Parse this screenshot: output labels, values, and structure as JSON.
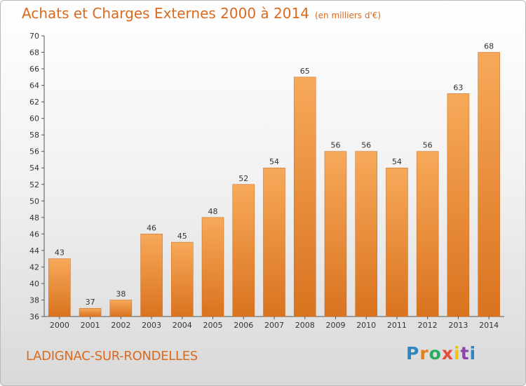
{
  "title": "Achats et Charges Externes 2000 à 2014",
  "subtitle": "(en milliers d'€)",
  "commune": "LADIGNAC-SUR-RONDELLES",
  "logo": {
    "letters": [
      "P",
      "r",
      "o",
      "x",
      "i",
      "t",
      "i"
    ],
    "colors": [
      "#2e86c1",
      "#e67e22",
      "#27ae60",
      "#e74c3c",
      "#f1c40f",
      "#8e44ad",
      "#2e86c1"
    ]
  },
  "colors": {
    "bar_light": "#f7a95a",
    "bar_dark": "#d9731f",
    "title": "#d96a1e"
  },
  "chart_data": {
    "type": "bar",
    "categories": [
      "2000",
      "2001",
      "2002",
      "2003",
      "2004",
      "2005",
      "2006",
      "2007",
      "2008",
      "2009",
      "2010",
      "2011",
      "2012",
      "2013",
      "2014"
    ],
    "values": [
      43,
      37,
      38,
      46,
      45,
      48,
      52,
      54,
      65,
      56,
      56,
      54,
      56,
      63,
      68
    ],
    "title": "Achats et Charges Externes 2000 à 2014",
    "subtitle": "(en milliers d'€)",
    "xlabel": "",
    "ylabel": "",
    "ylim": [
      36,
      70
    ],
    "yticks": [
      36,
      38,
      40,
      42,
      44,
      46,
      48,
      50,
      52,
      54,
      56,
      58,
      60,
      62,
      64,
      66,
      68,
      70
    ],
    "grid": false,
    "legend": "none"
  }
}
